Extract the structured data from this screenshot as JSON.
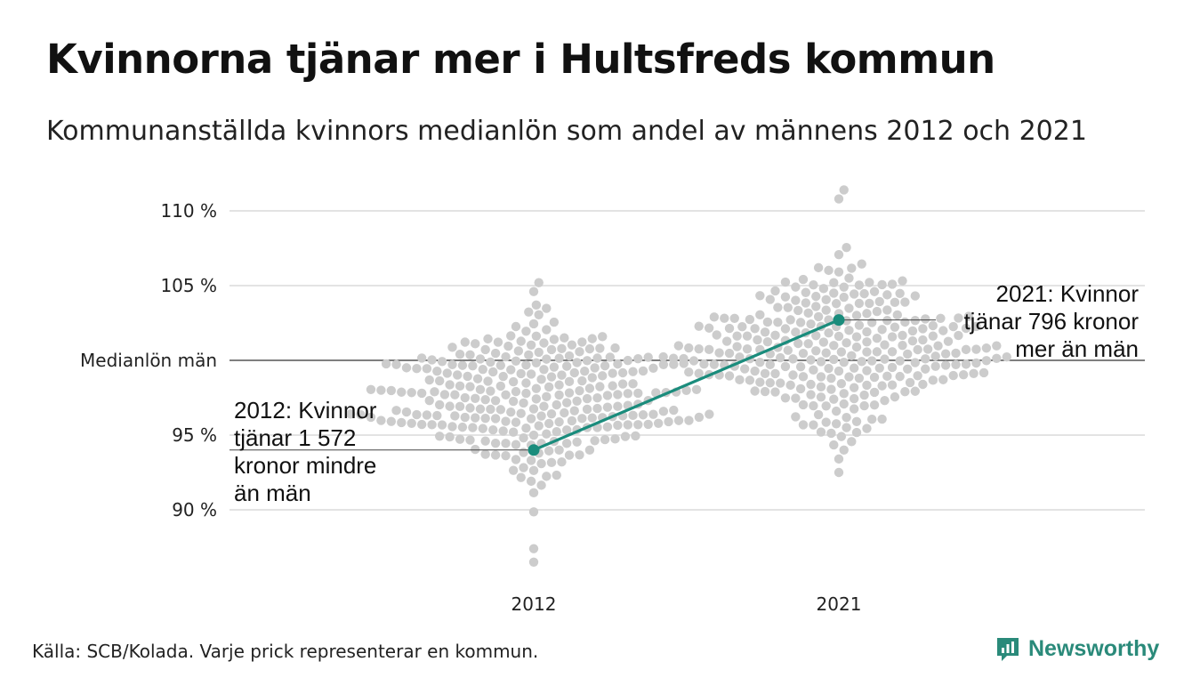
{
  "title": "Kvinnorna tjänar mer i Hultsfreds kommun",
  "subtitle": "Kommunanställda kvinnors medianlön som andel av männens 2012 och 2021",
  "source": "Källa: SCB/Kolada. Varje prick representerar en kommun.",
  "brand": {
    "name": "Newsworthy",
    "icon": "newsworthy-logo-icon",
    "color": "#2a8a7a"
  },
  "chart_data": {
    "type": "scatter",
    "title": "Kvinnorna tjänar mer i Hultsfreds kommun",
    "subtitle": "Kommunanställda kvinnors medianlön som andel av männens 2012 och 2021",
    "categories": [
      "2012",
      "2021"
    ],
    "ylim": [
      86,
      111.5
    ],
    "y_ticks": [
      {
        "value": 90,
        "label": "90 %"
      },
      {
        "value": 95,
        "label": "95 %"
      },
      {
        "value": 100,
        "label": "Medianlön män"
      },
      {
        "value": 105,
        "label": "105 %"
      },
      {
        "value": 110,
        "label": "110 %"
      }
    ],
    "reference_line": {
      "value": 100,
      "label": "Medianlön män"
    },
    "grid": true,
    "distribution_summary": {
      "2012": {
        "min": 86.5,
        "max": 105.2,
        "center": 97.5,
        "spread": 2.5
      },
      "2021": {
        "min": 92.5,
        "max": 111.4,
        "center": 100.5,
        "spread": 2.7
      }
    },
    "highlight": {
      "name": "Hultsfred",
      "color": "#1a8c7c",
      "values": [
        {
          "category": "2012",
          "value": 94.0
        },
        {
          "category": "2021",
          "value": 102.7
        }
      ]
    },
    "annotations": [
      {
        "category": "2012",
        "lines": [
          "2012: Kvinnor",
          "tjänar 1 572",
          "kronor mindre",
          "än män"
        ]
      },
      {
        "category": "2021",
        "lines": [
          "2021: Kvinnor",
          "tjänar 796 kronor",
          "mer än män"
        ]
      }
    ],
    "dot_color": "#cccccc"
  }
}
